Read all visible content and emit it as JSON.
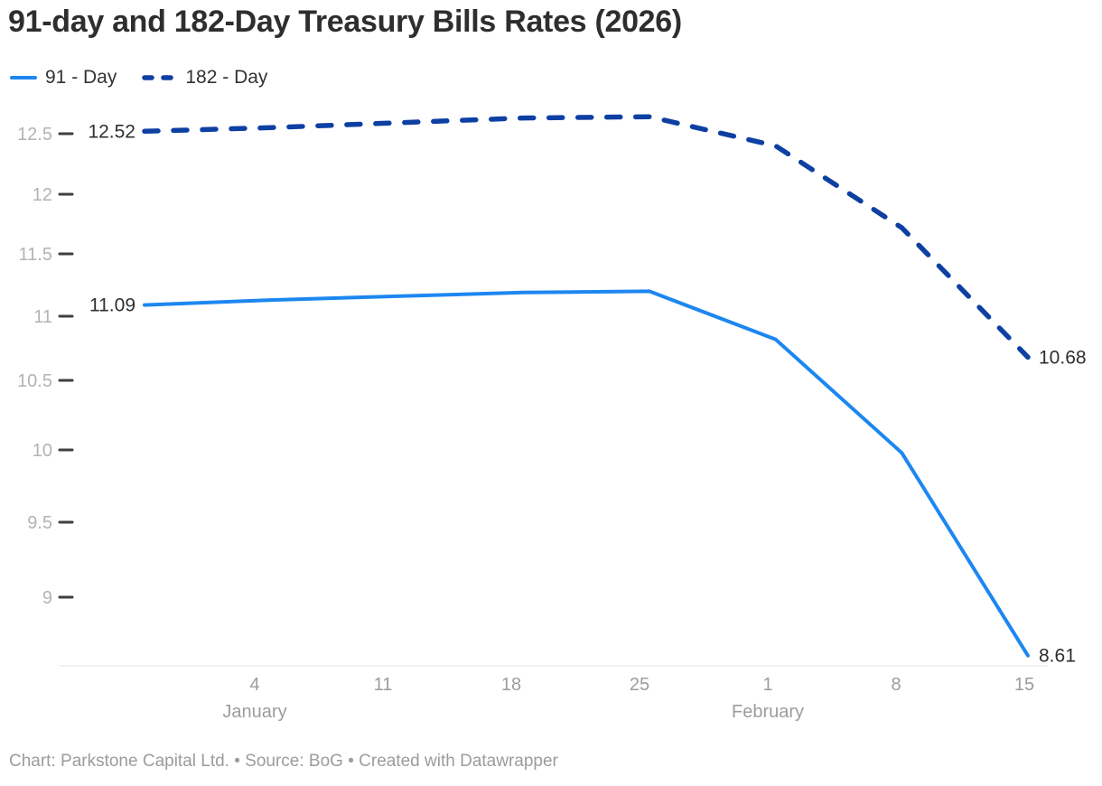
{
  "header": {
    "title": "91-day and 182-Day Treasury Bills Rates (2026)"
  },
  "legend": [
    {
      "label": "91 - Day",
      "color": "#1d87f0",
      "style": "solid"
    },
    {
      "label": "182 - Day",
      "color": "#0e3fa3",
      "style": "dashed"
    }
  ],
  "chart_data": {
    "type": "line",
    "title": "91-day and 182-Day Treasury Bills Rates (2026)",
    "x": [
      "Dec 29",
      "Jan 5",
      "Jan 12",
      "Jan 19",
      "Jan 26",
      "Feb 2",
      "Feb 9",
      "Feb 16"
    ],
    "x_note": "weekly points, dates estimated from axis gridlines",
    "series": [
      {
        "name": "91 - Day",
        "color": "#1d87f0",
        "dashed": false,
        "values": [
          11.09,
          11.13,
          11.16,
          11.19,
          11.2,
          10.82,
          9.98,
          8.61
        ],
        "start_label": "11.09",
        "end_label": "8.61"
      },
      {
        "name": "182 - Day",
        "color": "#0e3fa3",
        "dashed": true,
        "values": [
          12.52,
          12.55,
          12.59,
          12.63,
          12.64,
          12.4,
          11.72,
          10.68
        ],
        "start_label": "12.52",
        "end_label": "10.68"
      }
    ],
    "y_tick_labels": [
      "12.5",
      "12",
      "11.5",
      "11",
      "10.5",
      "10",
      "9.5",
      "9"
    ],
    "y_ticks": [
      12.5,
      12,
      11.5,
      11,
      10.5,
      10,
      9.5,
      9
    ],
    "ylim": [
      8.55,
      12.75
    ],
    "x_ticks": [
      {
        "day": "4",
        "month": "January"
      },
      {
        "day": "11"
      },
      {
        "day": "18"
      },
      {
        "day": "25"
      },
      {
        "day": "1",
        "month": "February"
      },
      {
        "day": "8"
      },
      {
        "day": "15"
      }
    ],
    "grid": false,
    "legend_position": "top-left"
  },
  "footer": {
    "text": "Chart: Parkstone Capital Ltd. • Source: BoG • Created with Datawrapper"
  }
}
